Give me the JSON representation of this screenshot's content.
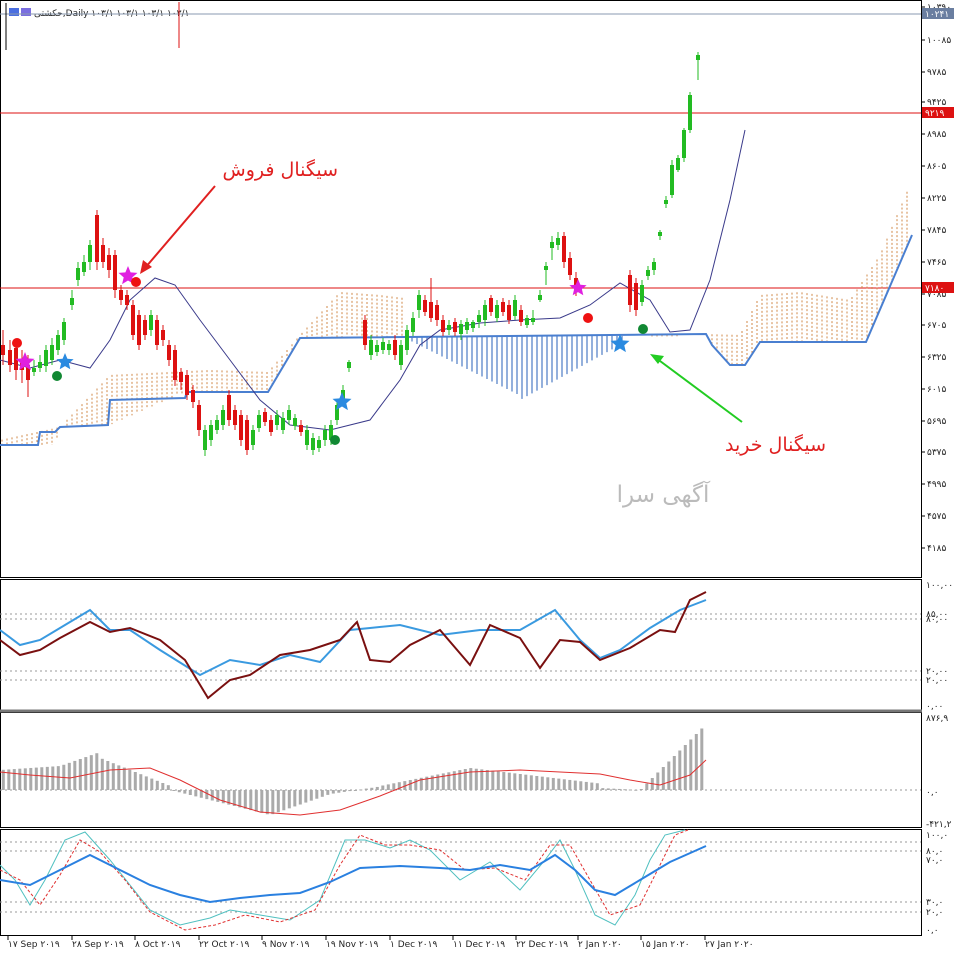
{
  "header": {
    "title_text": "حکشتی,Daily  ۱۰۳/۱ ۱۰۳/۱ ۱۰۳/۱ ۱۰۳/۱"
  },
  "watermark": "آگهی سرا",
  "annotations": {
    "sell_label": "سیگنال فروش",
    "buy_label": "سیگنال خرید"
  },
  "price_axis": {
    "labels": [
      "۱۰۳۹۰",
      "۱۰۰۸۵",
      "۹۷۸۵",
      "۹۴۲۵",
      "۸۹۸۵",
      "۸۶۰۵",
      "۸۲۲۵",
      "۷۸۴۵",
      "۷۴۶۵",
      "۷۰۸۵",
      "۶۷۰۵",
      "۶۳۲۵",
      "۶۰۱۵",
      "۵۶۹۵",
      "۵۳۷۵",
      "۴۹۹۵",
      "۴۵۷۵",
      "۴۱۸۵"
    ],
    "current_price_tag": "۱۰۲۴۱",
    "line1_tag": "۹۲۱۹",
    "line2_tag": "۷۱۸۰"
  },
  "osc1_axis": {
    "labels": [
      "۱۰۰,۰۰",
      "۸۵,۰۰",
      "۸۰,۰۰",
      "۲۰,۰۰",
      "۲۰,۰۰",
      "۰,۰۰"
    ]
  },
  "macd_axis": {
    "labels": [
      "۸۷۶,۹",
      "۰,۰",
      "-۴۲۱,۲"
    ]
  },
  "stoch_axis": {
    "labels": [
      "۱۰۰,۰",
      "۸۰,۰",
      "۷۰,۰",
      "۳۰,۰",
      "۲۰,۰",
      "۰,۰"
    ]
  },
  "date_axis": {
    "labels": [
      "۱۷ Sep ۲۰۱۹",
      "۲۸ Sep ۲۰۱۹",
      "۸ Oct ۲۰۱۹",
      "۲۲ Oct ۲۰۱۹",
      "۹ Nov ۲۰۱۹",
      "۱۹ Nov ۲۰۱۹",
      "۱ Dec ۲۰۱۹",
      "۱۱ Dec ۲۰۱۹",
      "۲۲ Dec ۲۰۱۹",
      "۲ Jan ۲۰۲۰",
      "۱۵ Jan ۲۰۲۰",
      "۲۷ Jan ۲۰۲۰"
    ]
  },
  "colors": {
    "bull": "#22bb22",
    "bear": "#dd1111",
    "kijun": "#4a7fd0",
    "tenkan": "#3a3a8a",
    "cloud_up": "#d08a4a",
    "cloud_down": "#5a86c8",
    "signal_sell_star": "#e020e0",
    "signal_buy_star": "#2a8ae0",
    "annotation_red": "#e02020",
    "annotation_green": "#22cc22"
  }
}
